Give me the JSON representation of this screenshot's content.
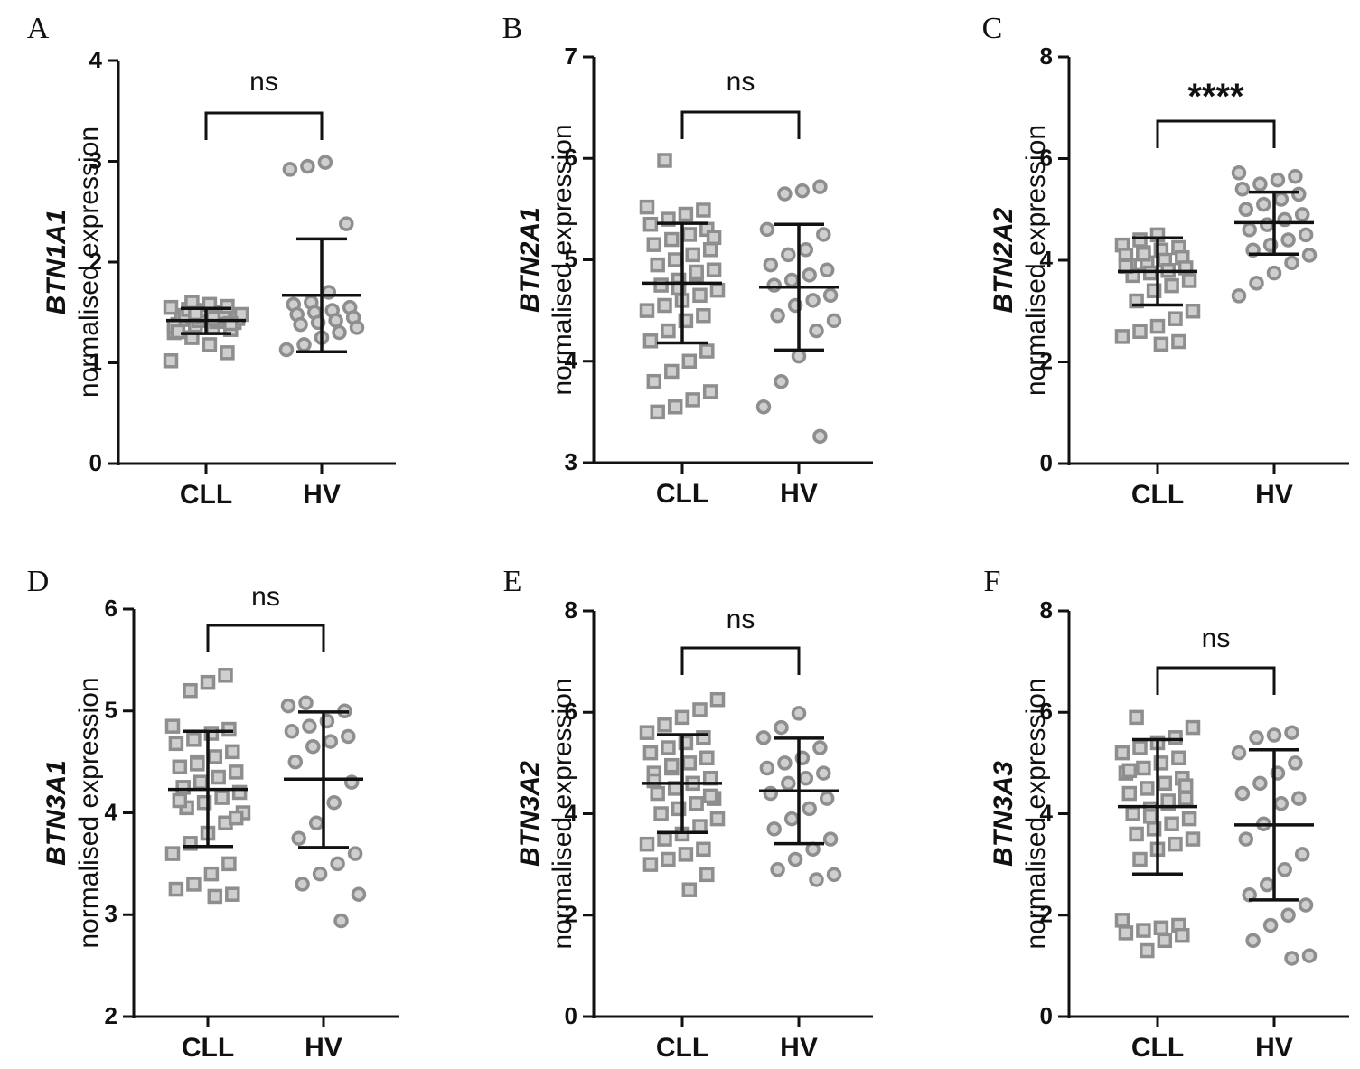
{
  "colors": {
    "marker_stroke": "#8e8e8e",
    "marker_fill": "#cfcfcf",
    "axis": "#111111",
    "bar": "#111111"
  },
  "chart_data": [
    {
      "panel": "A",
      "type": "scatter",
      "gene": "BTN1A1",
      "ylabel": "normalised expression",
      "categories": [
        "CLL",
        "HV"
      ],
      "ylim": [
        0,
        4
      ],
      "yticks": [
        0,
        1,
        2,
        3,
        4
      ],
      "significance": "ns",
      "series": [
        {
          "name": "CLL",
          "marker": "square",
          "mean": 1.42,
          "sd_low": 1.29,
          "sd_high": 1.54,
          "values": [
            1.02,
            1.1,
            1.18,
            1.25,
            1.3,
            1.33,
            1.35,
            1.37,
            1.38,
            1.4,
            1.41,
            1.42,
            1.43,
            1.44,
            1.45,
            1.46,
            1.47,
            1.48,
            1.5,
            1.52,
            1.53,
            1.55,
            1.56,
            1.58,
            1.6,
            1.36,
            1.39,
            1.44,
            1.49,
            1.31
          ]
        },
        {
          "name": "HV",
          "marker": "circle",
          "mean": 1.67,
          "sd_low": 1.11,
          "sd_high": 2.23,
          "values": [
            2.99,
            2.95,
            2.92,
            2.38,
            1.7,
            1.6,
            1.58,
            1.55,
            1.52,
            1.5,
            1.48,
            1.45,
            1.42,
            1.4,
            1.38,
            1.35,
            1.3,
            1.25,
            1.18,
            1.13
          ]
        }
      ]
    },
    {
      "panel": "B",
      "type": "scatter",
      "gene": "BTN2A1",
      "ylabel": "normalised expression",
      "categories": [
        "CLL",
        "HV"
      ],
      "ylim": [
        3,
        7
      ],
      "yticks": [
        3,
        4,
        5,
        6,
        7
      ],
      "significance": "ns",
      "series": [
        {
          "name": "CLL",
          "marker": "square",
          "mean": 4.77,
          "sd_low": 4.18,
          "sd_high": 5.36,
          "values": [
            5.98,
            5.52,
            5.49,
            5.45,
            5.4,
            5.35,
            5.3,
            5.25,
            5.2,
            5.15,
            5.1,
            5.05,
            5.0,
            4.95,
            4.9,
            4.85,
            4.8,
            4.75,
            4.7,
            4.65,
            4.6,
            4.55,
            4.5,
            4.45,
            4.4,
            4.3,
            4.2,
            4.1,
            4.0,
            3.9,
            3.8,
            3.7,
            3.62,
            3.55,
            3.5,
            5.22,
            4.88,
            4.72
          ]
        },
        {
          "name": "HV",
          "marker": "circle",
          "mean": 4.73,
          "sd_low": 4.11,
          "sd_high": 5.35,
          "values": [
            5.72,
            5.68,
            5.65,
            5.3,
            5.25,
            5.1,
            5.05,
            4.95,
            4.9,
            4.85,
            4.8,
            4.75,
            4.65,
            4.6,
            4.55,
            4.45,
            4.4,
            4.3,
            4.05,
            3.8,
            3.55,
            3.26
          ]
        }
      ]
    },
    {
      "panel": "C",
      "type": "scatter",
      "gene": "BTN2A2",
      "ylabel": "normalised expression",
      "categories": [
        "CLL",
        "HV"
      ],
      "ylim": [
        0,
        8
      ],
      "yticks": [
        0,
        2,
        4,
        6,
        8
      ],
      "significance": "****",
      "series": [
        {
          "name": "CLL",
          "marker": "square",
          "mean": 3.78,
          "sd_low": 3.12,
          "sd_high": 4.44,
          "values": [
            4.5,
            4.4,
            4.3,
            4.25,
            4.2,
            4.15,
            4.1,
            4.05,
            4.0,
            3.95,
            3.9,
            3.85,
            3.8,
            3.75,
            3.7,
            3.6,
            3.5,
            3.4,
            3.2,
            3.0,
            2.85,
            2.7,
            2.6,
            2.5,
            2.4,
            2.35,
            4.12,
            3.88
          ]
        },
        {
          "name": "HV",
          "marker": "circle",
          "mean": 4.74,
          "sd_low": 4.12,
          "sd_high": 5.34,
          "values": [
            5.72,
            5.65,
            5.58,
            5.5,
            5.4,
            5.3,
            5.2,
            5.1,
            5.0,
            4.9,
            4.8,
            4.7,
            4.6,
            4.5,
            4.4,
            4.3,
            4.2,
            4.1,
            3.95,
            3.75,
            3.55,
            3.3
          ]
        }
      ]
    },
    {
      "panel": "D",
      "type": "scatter",
      "gene": "BTN3A1",
      "ylabel": "normalised expression",
      "categories": [
        "CLL",
        "HV"
      ],
      "ylim": [
        2,
        6
      ],
      "yticks": [
        2,
        3,
        4,
        5,
        6
      ],
      "significance": "ns",
      "series": [
        {
          "name": "CLL",
          "marker": "square",
          "mean": 4.23,
          "sd_low": 3.67,
          "sd_high": 4.8,
          "values": [
            5.35,
            5.28,
            5.2,
            4.85,
            4.82,
            4.78,
            4.72,
            4.68,
            4.6,
            4.55,
            4.5,
            4.45,
            4.4,
            4.35,
            4.3,
            4.25,
            4.2,
            4.15,
            4.1,
            4.05,
            4.0,
            3.9,
            3.8,
            3.7,
            3.6,
            3.5,
            3.4,
            3.3,
            3.25,
            3.2,
            3.18,
            4.48,
            4.12,
            3.95
          ]
        },
        {
          "name": "HV",
          "marker": "circle",
          "mean": 4.33,
          "sd_low": 3.66,
          "sd_high": 4.99,
          "values": [
            5.08,
            5.05,
            5.0,
            4.9,
            4.85,
            4.8,
            4.75,
            4.7,
            4.65,
            4.5,
            4.3,
            4.1,
            3.9,
            3.75,
            3.6,
            3.5,
            3.4,
            3.3,
            3.2,
            2.94
          ]
        }
      ]
    },
    {
      "panel": "E",
      "type": "scatter",
      "gene": "BTN3A2",
      "ylabel": "normalised expression",
      "categories": [
        "CLL",
        "HV"
      ],
      "ylim": [
        0,
        8
      ],
      "yticks": [
        0,
        2,
        4,
        6,
        8
      ],
      "significance": "ns",
      "series": [
        {
          "name": "CLL",
          "marker": "square",
          "mean": 4.6,
          "sd_low": 3.63,
          "sd_high": 5.56,
          "values": [
            6.25,
            6.05,
            5.9,
            5.75,
            5.6,
            5.5,
            5.4,
            5.3,
            5.2,
            5.1,
            5.0,
            4.9,
            4.8,
            4.7,
            4.6,
            4.5,
            4.4,
            4.3,
            4.2,
            4.1,
            4.0,
            3.9,
            3.75,
            3.6,
            3.5,
            3.4,
            3.3,
            3.2,
            3.1,
            3.0,
            2.8,
            2.5,
            4.95,
            4.65,
            4.35
          ]
        },
        {
          "name": "HV",
          "marker": "circle",
          "mean": 4.45,
          "sd_low": 3.41,
          "sd_high": 5.49,
          "values": [
            5.98,
            5.7,
            5.5,
            5.3,
            5.1,
            5.0,
            4.9,
            4.8,
            4.7,
            4.6,
            4.4,
            4.3,
            4.1,
            3.9,
            3.7,
            3.5,
            3.3,
            3.1,
            2.9,
            2.8,
            2.7
          ]
        }
      ]
    },
    {
      "panel": "F",
      "type": "scatter",
      "gene": "BTN3A3",
      "ylabel": "normalised expression",
      "categories": [
        "CLL",
        "HV"
      ],
      "ylim": [
        0,
        8
      ],
      "yticks": [
        0,
        2,
        4,
        6,
        8
      ],
      "significance": "ns",
      "series": [
        {
          "name": "CLL",
          "marker": "square",
          "mean": 4.14,
          "sd_low": 2.81,
          "sd_high": 5.46,
          "values": [
            5.9,
            5.7,
            5.5,
            5.4,
            5.3,
            5.2,
            5.1,
            5.0,
            4.9,
            4.8,
            4.7,
            4.6,
            4.5,
            4.4,
            4.3,
            4.2,
            4.1,
            4.0,
            3.9,
            3.8,
            3.7,
            3.6,
            3.5,
            3.4,
            3.3,
            3.1,
            1.9,
            1.8,
            1.75,
            1.7,
            1.65,
            1.6,
            1.5,
            1.3,
            4.85,
            4.55,
            4.25,
            3.95
          ]
        },
        {
          "name": "HV",
          "marker": "circle",
          "mean": 3.78,
          "sd_low": 2.3,
          "sd_high": 5.26,
          "values": [
            5.6,
            5.55,
            5.5,
            5.2,
            5.0,
            4.8,
            4.6,
            4.4,
            4.3,
            4.2,
            3.8,
            3.5,
            3.2,
            2.9,
            2.6,
            2.4,
            2.2,
            2.0,
            1.8,
            1.5,
            1.2,
            1.15
          ]
        }
      ]
    }
  ]
}
